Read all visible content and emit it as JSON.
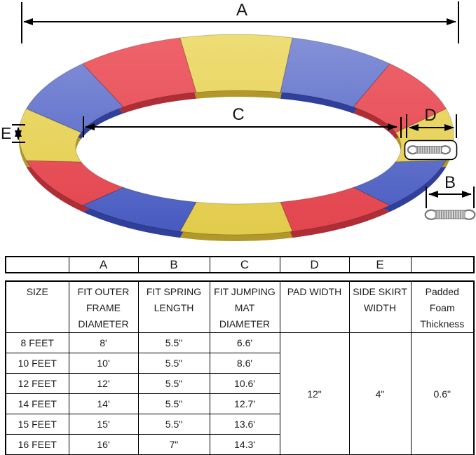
{
  "diagram": {
    "labels": {
      "a": "A",
      "b": "B",
      "c": "C",
      "d": "D",
      "e": "E"
    },
    "ring": {
      "segments": [
        "yellow",
        "blue",
        "red",
        "yellow",
        "blue",
        "red",
        "yellow",
        "blue",
        "red",
        "yellow",
        "blue",
        "red"
      ],
      "colors": {
        "yellow": {
          "light": "#eedd76",
          "main": "#e2cb4a",
          "dark": "#b2982b"
        },
        "blue": {
          "light": "#8693d9",
          "main": "#4558bf",
          "dark": "#303f9a"
        },
        "red": {
          "light": "#ef646c",
          "main": "#e2444d",
          "dark": "#af2e36"
        }
      }
    },
    "spring": {
      "body": "#8b8b8b",
      "light": "#d7d7d7",
      "hook": "#7a7a7a",
      "box_border": "#000000"
    }
  },
  "table": {
    "letters": [
      "",
      "A",
      "B",
      "C",
      "D",
      "E",
      ""
    ],
    "headers": [
      [
        "SIZE"
      ],
      [
        "FIT OUTER",
        "FRAME",
        "DIAMETER"
      ],
      [
        "FIT SPRING",
        "LENGTH"
      ],
      [
        "FIT JUMPING",
        "MAT",
        "DIAMETER"
      ],
      [
        "PAD WIDTH"
      ],
      [
        "SIDE SKIRT",
        "WIDTH"
      ],
      [
        "Padded",
        "Foam",
        "Thickness"
      ]
    ],
    "rows": [
      {
        "size": "8 FEET",
        "outer_frame_diameter": "8'",
        "spring_length": "5.5\"",
        "mat_diameter": "6.6'"
      },
      {
        "size": "10 FEET",
        "outer_frame_diameter": "10'",
        "spring_length": "5.5\"",
        "mat_diameter": "8.6'"
      },
      {
        "size": "12 FEET",
        "outer_frame_diameter": "12'",
        "spring_length": "5.5\"",
        "mat_diameter": "10.6'"
      },
      {
        "size": "14 FEET",
        "outer_frame_diameter": "14'",
        "spring_length": "5.5\"",
        "mat_diameter": "12.7'"
      },
      {
        "size": "15 FEET",
        "outer_frame_diameter": "15'",
        "spring_length": "5.5\"",
        "mat_diameter": "13.6'"
      },
      {
        "size": "16 FEET",
        "outer_frame_diameter": "16'",
        "spring_length": "7\"",
        "mat_diameter": "14.3'"
      }
    ],
    "merged": {
      "pad_width": "12\"",
      "side_skirt_width": "4\"",
      "foam_thickness": "0.6\""
    }
  }
}
